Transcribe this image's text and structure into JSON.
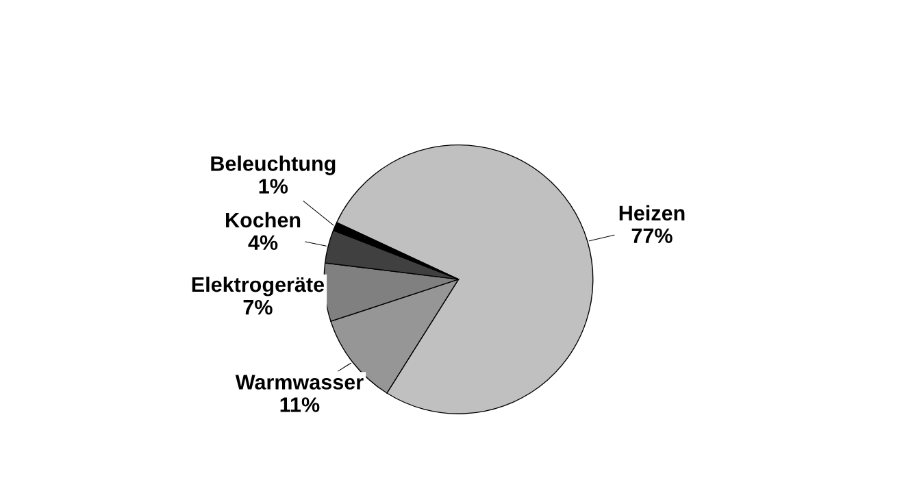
{
  "chart_data": {
    "type": "pie",
    "categories": [
      "Heizen",
      "Warmwasser",
      "Elektrogeräte",
      "Kochen",
      "Beleuchtung"
    ],
    "values": [
      77,
      11,
      7,
      4,
      1
    ],
    "value_labels": [
      "77%",
      "11%",
      "7%",
      "4%",
      "1%"
    ],
    "colors": [
      "#c0c0c0",
      "#969696",
      "#808080",
      "#404040",
      "#000000"
    ],
    "legend": false
  }
}
